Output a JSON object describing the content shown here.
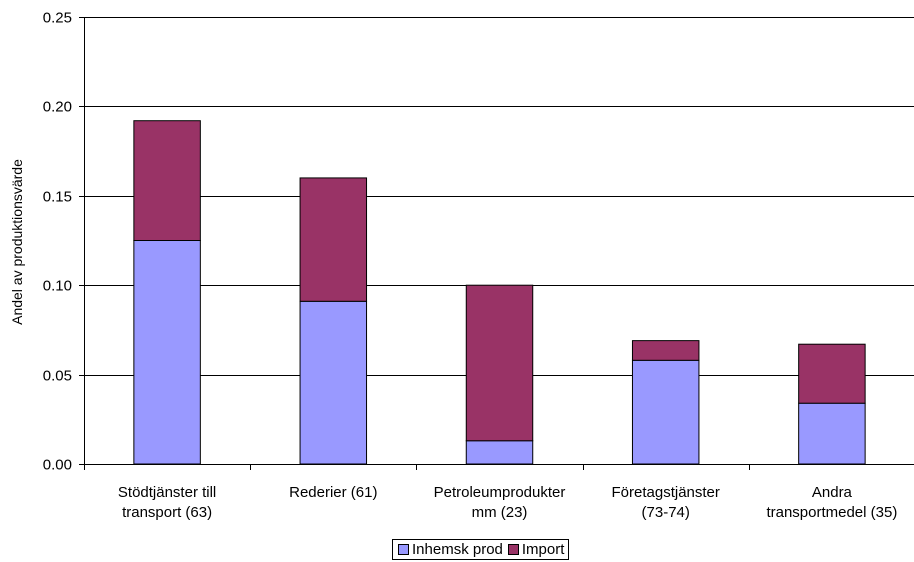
{
  "chart_data": {
    "type": "bar",
    "stacked": true,
    "categories": [
      [
        "Stödtjänster till",
        "transport (63)"
      ],
      [
        "Rederier (61)"
      ],
      [
        "Petroleumprodukter",
        "mm (23)"
      ],
      [
        "Företagstjänster",
        "(73-74)"
      ],
      [
        "Andra",
        "transportmedel (35)"
      ]
    ],
    "series": [
      {
        "name": "Inhemsk prod",
        "color": "#9999ff",
        "values": [
          0.125,
          0.091,
          0.013,
          0.058,
          0.034
        ]
      },
      {
        "name": "Import",
        "color": "#993366",
        "values": [
          0.067,
          0.069,
          0.087,
          0.011,
          0.033
        ]
      }
    ],
    "ylabel": "Andel av produktionsvärde",
    "ylim": [
      0,
      0.25
    ],
    "yticks": [
      0.0,
      0.05,
      0.1,
      0.15,
      0.2,
      0.25
    ],
    "ytick_labels": [
      "0.00",
      "0.05",
      "0.10",
      "0.15",
      "0.20",
      "0.25"
    ],
    "grid": true,
    "legend_position": "bottom"
  }
}
